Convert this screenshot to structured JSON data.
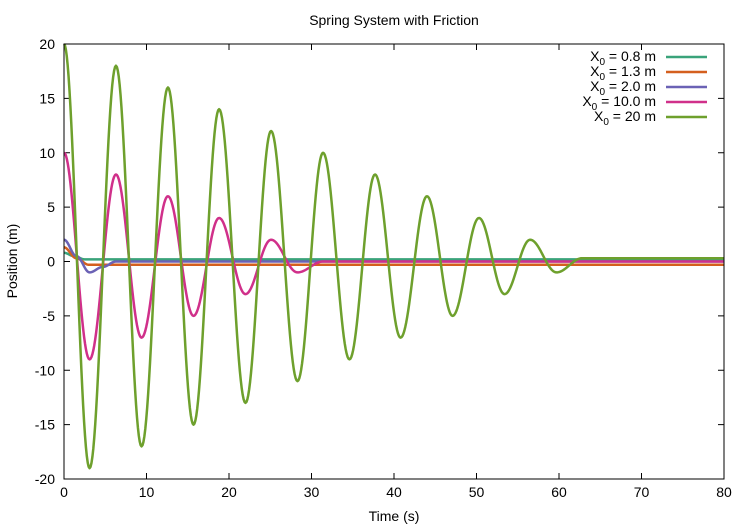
{
  "chart_data": {
    "type": "line",
    "title": "Spring System with Friction",
    "xlabel": "Time (s)",
    "ylabel": "Position (m)",
    "xlim": [
      0,
      80
    ],
    "ylim": [
      -20,
      20
    ],
    "xticks": [
      0,
      10,
      20,
      30,
      40,
      50,
      60,
      70,
      80
    ],
    "yticks": [
      -20,
      -15,
      -10,
      -5,
      0,
      5,
      10,
      15,
      20
    ],
    "grid": false,
    "legend_position": "top-right",
    "series": [
      {
        "name": "X0 = 0.8 m",
        "legend_prefix": "X",
        "legend_sub": "0",
        "legend_suffix": " = 0.8 m",
        "color": "#3aa37a",
        "x": [
          0,
          1.2,
          2.5,
          80
        ],
        "y": [
          0.8,
          0.5,
          0.2,
          0.2
        ]
      },
      {
        "name": "X0 = 1.3 m",
        "legend_prefix": "X",
        "legend_sub": "0",
        "legend_suffix": " = 1.3 m",
        "color": "#d45f1e",
        "x": [
          0,
          1.5,
          3.0,
          80
        ],
        "y": [
          1.3,
          0.3,
          -0.3,
          -0.3
        ]
      },
      {
        "name": "X0 = 2.0 m",
        "legend_prefix": "X",
        "legend_sub": "0",
        "legend_suffix": " = 2.0 m",
        "color": "#6b62b5",
        "x": [
          0,
          1.5,
          3.1,
          4.7,
          6.3,
          80
        ],
        "y": [
          2.0,
          0.5,
          -1.0,
          -0.5,
          0.0,
          0.0
        ]
      },
      {
        "name": "X0 = 10.0 m",
        "legend_prefix": "X",
        "legend_sub": "0",
        "legend_suffix": " = 10.0 m",
        "color": "#d0308a",
        "x": [
          0,
          3.1,
          6.3,
          9.4,
          12.6,
          15.7,
          18.8,
          22.0,
          25.1,
          28.3,
          31.4,
          80
        ],
        "y": [
          10,
          -9,
          8,
          -7,
          6,
          -5,
          4,
          -3,
          2,
          -1,
          0,
          0
        ]
      },
      {
        "name": "X0 = 20 m",
        "legend_prefix": "X",
        "legend_sub": "0",
        "legend_suffix": " = 20 m",
        "color": "#6ea02d",
        "x": [
          0,
          3.1,
          6.3,
          9.4,
          12.6,
          15.7,
          18.8,
          22.0,
          25.1,
          28.3,
          31.4,
          34.6,
          37.7,
          40.8,
          44.0,
          47.1,
          50.3,
          53.4,
          56.5,
          59.7,
          62.8,
          80
        ],
        "y": [
          20,
          -19,
          18,
          -17,
          16,
          -15,
          14,
          -13,
          12,
          -11,
          10,
          -9,
          8,
          -7,
          6,
          -5,
          4,
          -3,
          2,
          -1,
          0.3,
          0.3
        ]
      }
    ]
  }
}
